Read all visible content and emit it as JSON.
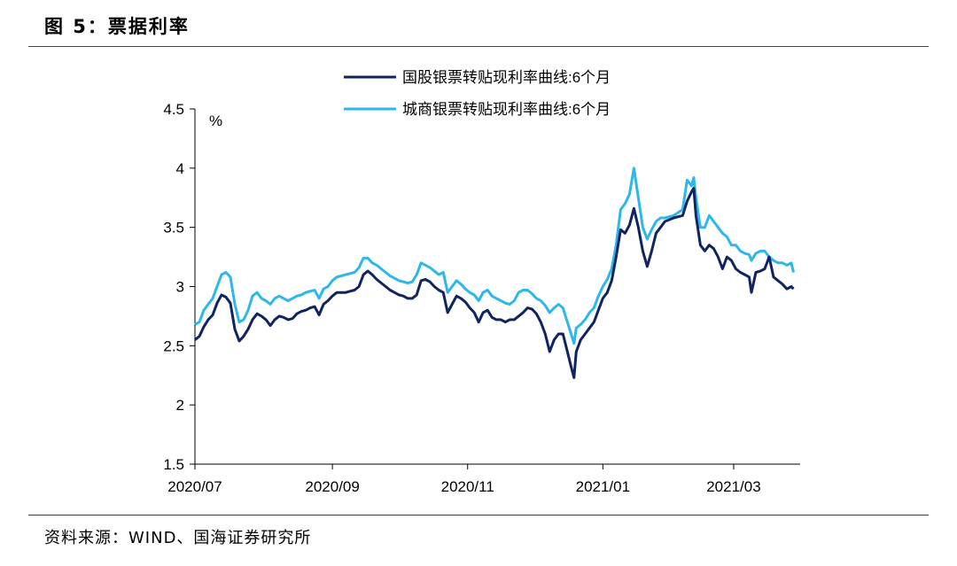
{
  "figure": {
    "title": "图 5：票据利率",
    "source": "资料来源：WIND、国海证券研究所"
  },
  "colors": {
    "series1": "#0f2460",
    "series2": "#2eb7ea"
  },
  "chart_data": {
    "type": "line",
    "title": "",
    "xlabel": "",
    "ylabel": "%",
    "ylim": [
      1.5,
      4.5
    ],
    "yticks": [
      "1.5",
      "2",
      "2.5",
      "3",
      "3.5",
      "4",
      "4.5"
    ],
    "xlim": [
      "2020-07-01",
      "2021-03-31"
    ],
    "xticks": [
      {
        "date": "2020-07-01",
        "label": "2020/07"
      },
      {
        "date": "2020-09-01",
        "label": "2020/09"
      },
      {
        "date": "2020-11-01",
        "label": "2020/11"
      },
      {
        "date": "2021-01-01",
        "label": "2021/01"
      },
      {
        "date": "2021-03-01",
        "label": "2021/03"
      }
    ],
    "grid": false,
    "legend": "top",
    "series": [
      {
        "name": "国股银票转贴现利率曲线:6个月",
        "points": [
          [
            "2020-07-01",
            2.55
          ],
          [
            "2020-07-03",
            2.58
          ],
          [
            "2020-07-05",
            2.66
          ],
          [
            "2020-07-07",
            2.72
          ],
          [
            "2020-07-09",
            2.76
          ],
          [
            "2020-07-11",
            2.86
          ],
          [
            "2020-07-13",
            2.93
          ],
          [
            "2020-07-15",
            2.91
          ],
          [
            "2020-07-17",
            2.86
          ],
          [
            "2020-07-19",
            2.64
          ],
          [
            "2020-07-21",
            2.54
          ],
          [
            "2020-07-23",
            2.58
          ],
          [
            "2020-07-25",
            2.64
          ],
          [
            "2020-07-27",
            2.72
          ],
          [
            "2020-07-29",
            2.77
          ],
          [
            "2020-07-31",
            2.75
          ],
          [
            "2020-08-02",
            2.72
          ],
          [
            "2020-08-04",
            2.67
          ],
          [
            "2020-08-06",
            2.72
          ],
          [
            "2020-08-08",
            2.75
          ],
          [
            "2020-08-10",
            2.74
          ],
          [
            "2020-08-12",
            2.72
          ],
          [
            "2020-08-14",
            2.73
          ],
          [
            "2020-08-16",
            2.77
          ],
          [
            "2020-08-18",
            2.79
          ],
          [
            "2020-08-20",
            2.8
          ],
          [
            "2020-08-22",
            2.82
          ],
          [
            "2020-08-24",
            2.83
          ],
          [
            "2020-08-26",
            2.76
          ],
          [
            "2020-08-28",
            2.85
          ],
          [
            "2020-08-30",
            2.88
          ],
          [
            "2020-09-01",
            2.92
          ],
          [
            "2020-09-03",
            2.95
          ],
          [
            "2020-09-05",
            2.95
          ],
          [
            "2020-09-07",
            2.95
          ],
          [
            "2020-09-09",
            2.96
          ],
          [
            "2020-09-11",
            2.97
          ],
          [
            "2020-09-13",
            3.0
          ],
          [
            "2020-09-15",
            3.1
          ],
          [
            "2020-09-17",
            3.13
          ],
          [
            "2020-09-19",
            3.1
          ],
          [
            "2020-09-21",
            3.06
          ],
          [
            "2020-09-23",
            3.03
          ],
          [
            "2020-09-25",
            3.0
          ],
          [
            "2020-09-27",
            2.97
          ],
          [
            "2020-09-29",
            2.95
          ],
          [
            "2020-10-01",
            2.93
          ],
          [
            "2020-10-03",
            2.92
          ],
          [
            "2020-10-05",
            2.9
          ],
          [
            "2020-10-07",
            2.9
          ],
          [
            "2020-10-09",
            2.93
          ],
          [
            "2020-10-11",
            3.05
          ],
          [
            "2020-10-13",
            3.06
          ],
          [
            "2020-10-15",
            3.04
          ],
          [
            "2020-10-17",
            3.0
          ],
          [
            "2020-10-19",
            2.97
          ],
          [
            "2020-10-21",
            2.95
          ],
          [
            "2020-10-23",
            2.78
          ],
          [
            "2020-10-25",
            2.85
          ],
          [
            "2020-10-27",
            2.92
          ],
          [
            "2020-10-29",
            2.9
          ],
          [
            "2020-10-31",
            2.87
          ],
          [
            "2020-11-02",
            2.82
          ],
          [
            "2020-11-04",
            2.78
          ],
          [
            "2020-11-06",
            2.7
          ],
          [
            "2020-11-08",
            2.78
          ],
          [
            "2020-11-10",
            2.8
          ],
          [
            "2020-11-12",
            2.74
          ],
          [
            "2020-11-14",
            2.72
          ],
          [
            "2020-11-16",
            2.72
          ],
          [
            "2020-11-18",
            2.7
          ],
          [
            "2020-11-20",
            2.72
          ],
          [
            "2020-11-22",
            2.72
          ],
          [
            "2020-11-24",
            2.75
          ],
          [
            "2020-11-26",
            2.78
          ],
          [
            "2020-11-28",
            2.82
          ],
          [
            "2020-11-30",
            2.81
          ],
          [
            "2020-12-02",
            2.77
          ],
          [
            "2020-12-04",
            2.7
          ],
          [
            "2020-12-06",
            2.6
          ],
          [
            "2020-12-08",
            2.45
          ],
          [
            "2020-12-10",
            2.55
          ],
          [
            "2020-12-12",
            2.6
          ],
          [
            "2020-12-14",
            2.6
          ],
          [
            "2020-12-16",
            2.45
          ],
          [
            "2020-12-18",
            2.3
          ],
          [
            "2020-12-19",
            2.23
          ],
          [
            "2020-12-20",
            2.45
          ],
          [
            "2020-12-22",
            2.55
          ],
          [
            "2020-12-24",
            2.6
          ],
          [
            "2020-12-26",
            2.65
          ],
          [
            "2020-12-28",
            2.7
          ],
          [
            "2020-12-30",
            2.8
          ],
          [
            "2021-01-01",
            2.9
          ],
          [
            "2021-01-03",
            2.95
          ],
          [
            "2021-01-05",
            3.05
          ],
          [
            "2021-01-07",
            3.25
          ],
          [
            "2021-01-09",
            3.48
          ],
          [
            "2021-01-11",
            3.45
          ],
          [
            "2021-01-13",
            3.52
          ],
          [
            "2021-01-15",
            3.66
          ],
          [
            "2021-01-17",
            3.5
          ],
          [
            "2021-01-19",
            3.3
          ],
          [
            "2021-01-21",
            3.17
          ],
          [
            "2021-01-23",
            3.3
          ],
          [
            "2021-01-25",
            3.45
          ],
          [
            "2021-01-27",
            3.5
          ],
          [
            "2021-01-29",
            3.55
          ],
          [
            "2021-02-02",
            3.58
          ],
          [
            "2021-02-06",
            3.6
          ],
          [
            "2021-02-08",
            3.72
          ],
          [
            "2021-02-10",
            3.8
          ],
          [
            "2021-02-11",
            3.83
          ],
          [
            "2021-02-12",
            3.6
          ],
          [
            "2021-02-14",
            3.35
          ],
          [
            "2021-02-16",
            3.3
          ],
          [
            "2021-02-18",
            3.35
          ],
          [
            "2021-02-20",
            3.32
          ],
          [
            "2021-02-22",
            3.25
          ],
          [
            "2021-02-24",
            3.15
          ],
          [
            "2021-02-26",
            3.25
          ],
          [
            "2021-02-28",
            3.22
          ],
          [
            "2021-03-02",
            3.15
          ],
          [
            "2021-03-04",
            3.12
          ],
          [
            "2021-03-06",
            3.1
          ],
          [
            "2021-03-08",
            3.08
          ],
          [
            "2021-03-09",
            2.95
          ],
          [
            "2021-03-11",
            3.12
          ],
          [
            "2021-03-13",
            3.13
          ],
          [
            "2021-03-15",
            3.15
          ],
          [
            "2021-03-17",
            3.25
          ],
          [
            "2021-03-19",
            3.08
          ],
          [
            "2021-03-21",
            3.05
          ],
          [
            "2021-03-23",
            3.02
          ],
          [
            "2021-03-25",
            2.98
          ],
          [
            "2021-03-27",
            3.0
          ],
          [
            "2021-03-28",
            2.98
          ]
        ]
      },
      {
        "name": "城商银票转贴现利率曲线:6个月",
        "points": [
          [
            "2020-07-01",
            2.68
          ],
          [
            "2020-07-03",
            2.7
          ],
          [
            "2020-07-05",
            2.8
          ],
          [
            "2020-07-07",
            2.85
          ],
          [
            "2020-07-09",
            2.9
          ],
          [
            "2020-07-11",
            3.0
          ],
          [
            "2020-07-13",
            3.1
          ],
          [
            "2020-07-15",
            3.12
          ],
          [
            "2020-07-17",
            3.08
          ],
          [
            "2020-07-19",
            2.85
          ],
          [
            "2020-07-21",
            2.7
          ],
          [
            "2020-07-23",
            2.72
          ],
          [
            "2020-07-25",
            2.8
          ],
          [
            "2020-07-27",
            2.92
          ],
          [
            "2020-07-29",
            2.95
          ],
          [
            "2020-07-31",
            2.9
          ],
          [
            "2020-08-02",
            2.88
          ],
          [
            "2020-08-04",
            2.85
          ],
          [
            "2020-08-06",
            2.9
          ],
          [
            "2020-08-08",
            2.92
          ],
          [
            "2020-08-10",
            2.9
          ],
          [
            "2020-08-12",
            2.88
          ],
          [
            "2020-08-14",
            2.9
          ],
          [
            "2020-08-16",
            2.92
          ],
          [
            "2020-08-18",
            2.93
          ],
          [
            "2020-08-20",
            2.95
          ],
          [
            "2020-08-22",
            2.96
          ],
          [
            "2020-08-24",
            2.97
          ],
          [
            "2020-08-26",
            2.9
          ],
          [
            "2020-08-28",
            2.98
          ],
          [
            "2020-08-30",
            3.0
          ],
          [
            "2020-09-01",
            3.05
          ],
          [
            "2020-09-03",
            3.08
          ],
          [
            "2020-09-05",
            3.09
          ],
          [
            "2020-09-07",
            3.1
          ],
          [
            "2020-09-09",
            3.11
          ],
          [
            "2020-09-11",
            3.12
          ],
          [
            "2020-09-13",
            3.16
          ],
          [
            "2020-09-15",
            3.24
          ],
          [
            "2020-09-17",
            3.24
          ],
          [
            "2020-09-19",
            3.2
          ],
          [
            "2020-09-21",
            3.18
          ],
          [
            "2020-09-23",
            3.15
          ],
          [
            "2020-09-25",
            3.12
          ],
          [
            "2020-09-27",
            3.09
          ],
          [
            "2020-09-29",
            3.07
          ],
          [
            "2020-10-01",
            3.05
          ],
          [
            "2020-10-03",
            3.04
          ],
          [
            "2020-10-05",
            3.03
          ],
          [
            "2020-10-07",
            3.04
          ],
          [
            "2020-10-09",
            3.1
          ],
          [
            "2020-10-11",
            3.2
          ],
          [
            "2020-10-13",
            3.18
          ],
          [
            "2020-10-15",
            3.16
          ],
          [
            "2020-10-17",
            3.13
          ],
          [
            "2020-10-19",
            3.1
          ],
          [
            "2020-10-21",
            3.12
          ],
          [
            "2020-10-23",
            2.95
          ],
          [
            "2020-10-25",
            3.0
          ],
          [
            "2020-10-27",
            3.05
          ],
          [
            "2020-10-29",
            3.02
          ],
          [
            "2020-10-31",
            2.98
          ],
          [
            "2020-11-02",
            2.95
          ],
          [
            "2020-11-04",
            2.93
          ],
          [
            "2020-11-06",
            2.88
          ],
          [
            "2020-11-08",
            2.95
          ],
          [
            "2020-11-10",
            2.97
          ],
          [
            "2020-11-12",
            2.92
          ],
          [
            "2020-11-14",
            2.9
          ],
          [
            "2020-11-16",
            2.88
          ],
          [
            "2020-11-18",
            2.86
          ],
          [
            "2020-11-20",
            2.85
          ],
          [
            "2020-11-22",
            2.88
          ],
          [
            "2020-11-24",
            2.95
          ],
          [
            "2020-11-26",
            2.97
          ],
          [
            "2020-11-28",
            2.97
          ],
          [
            "2020-11-30",
            2.94
          ],
          [
            "2020-12-02",
            2.9
          ],
          [
            "2020-12-04",
            2.88
          ],
          [
            "2020-12-06",
            2.84
          ],
          [
            "2020-12-08",
            2.78
          ],
          [
            "2020-12-10",
            2.82
          ],
          [
            "2020-12-12",
            2.85
          ],
          [
            "2020-12-14",
            2.82
          ],
          [
            "2020-12-16",
            2.7
          ],
          [
            "2020-12-18",
            2.58
          ],
          [
            "2020-12-19",
            2.52
          ],
          [
            "2020-12-20",
            2.65
          ],
          [
            "2020-12-22",
            2.68
          ],
          [
            "2020-12-24",
            2.72
          ],
          [
            "2020-12-26",
            2.78
          ],
          [
            "2020-12-28",
            2.82
          ],
          [
            "2020-12-30",
            2.92
          ],
          [
            "2021-01-01",
            3.0
          ],
          [
            "2021-01-03",
            3.06
          ],
          [
            "2021-01-05",
            3.15
          ],
          [
            "2021-01-07",
            3.35
          ],
          [
            "2021-01-09",
            3.65
          ],
          [
            "2021-01-11",
            3.7
          ],
          [
            "2021-01-13",
            3.78
          ],
          [
            "2021-01-15",
            4.0
          ],
          [
            "2021-01-17",
            3.75
          ],
          [
            "2021-01-19",
            3.5
          ],
          [
            "2021-01-21",
            3.4
          ],
          [
            "2021-01-23",
            3.48
          ],
          [
            "2021-01-25",
            3.55
          ],
          [
            "2021-01-27",
            3.58
          ],
          [
            "2021-01-29",
            3.58
          ],
          [
            "2021-02-02",
            3.6
          ],
          [
            "2021-02-06",
            3.65
          ],
          [
            "2021-02-08",
            3.9
          ],
          [
            "2021-02-10",
            3.85
          ],
          [
            "2021-02-11",
            3.92
          ],
          [
            "2021-02-12",
            3.75
          ],
          [
            "2021-02-14",
            3.5
          ],
          [
            "2021-02-16",
            3.5
          ],
          [
            "2021-02-18",
            3.6
          ],
          [
            "2021-02-20",
            3.55
          ],
          [
            "2021-02-22",
            3.5
          ],
          [
            "2021-02-24",
            3.45
          ],
          [
            "2021-02-26",
            3.42
          ],
          [
            "2021-02-28",
            3.35
          ],
          [
            "2021-03-02",
            3.35
          ],
          [
            "2021-03-04",
            3.3
          ],
          [
            "2021-03-06",
            3.28
          ],
          [
            "2021-03-08",
            3.27
          ],
          [
            "2021-03-09",
            3.22
          ],
          [
            "2021-03-11",
            3.28
          ],
          [
            "2021-03-13",
            3.3
          ],
          [
            "2021-03-15",
            3.3
          ],
          [
            "2021-03-17",
            3.25
          ],
          [
            "2021-03-19",
            3.22
          ],
          [
            "2021-03-21",
            3.2
          ],
          [
            "2021-03-23",
            3.2
          ],
          [
            "2021-03-25",
            3.18
          ],
          [
            "2021-03-27",
            3.2
          ],
          [
            "2021-03-28",
            3.12
          ]
        ]
      }
    ]
  }
}
